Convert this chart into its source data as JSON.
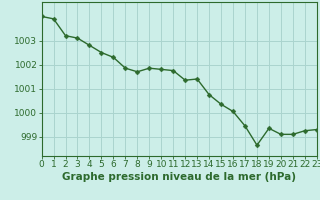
{
  "x": [
    0,
    1,
    2,
    3,
    4,
    5,
    6,
    7,
    8,
    9,
    10,
    11,
    12,
    13,
    14,
    15,
    16,
    17,
    18,
    19,
    20,
    21,
    22,
    23
  ],
  "y": [
    1004.0,
    1003.9,
    1003.2,
    1003.1,
    1002.8,
    1002.5,
    1002.3,
    1001.85,
    1001.7,
    1001.85,
    1001.8,
    1001.75,
    1001.35,
    1001.4,
    1000.75,
    1000.35,
    1000.05,
    999.45,
    998.65,
    999.35,
    999.1,
    999.1,
    999.25,
    999.3
  ],
  "line_color": "#2d6a2d",
  "marker": "D",
  "marker_size": 2.5,
  "bg_color": "#cceee8",
  "grid_color": "#aad4ce",
  "xlabel": "Graphe pression niveau de la mer (hPa)",
  "xlabel_fontsize": 7.5,
  "xtick_labels": [
    "0",
    "1",
    "2",
    "3",
    "4",
    "5",
    "6",
    "7",
    "8",
    "9",
    "10",
    "11",
    "12",
    "13",
    "14",
    "15",
    "16",
    "17",
    "18",
    "19",
    "20",
    "21",
    "22",
    "23"
  ],
  "yticks": [
    999,
    1000,
    1001,
    1002,
    1003
  ],
  "ylim": [
    998.2,
    1004.6
  ],
  "xlim": [
    0,
    23
  ],
  "tick_color": "#2d6a2d",
  "tick_fontsize": 6.5
}
